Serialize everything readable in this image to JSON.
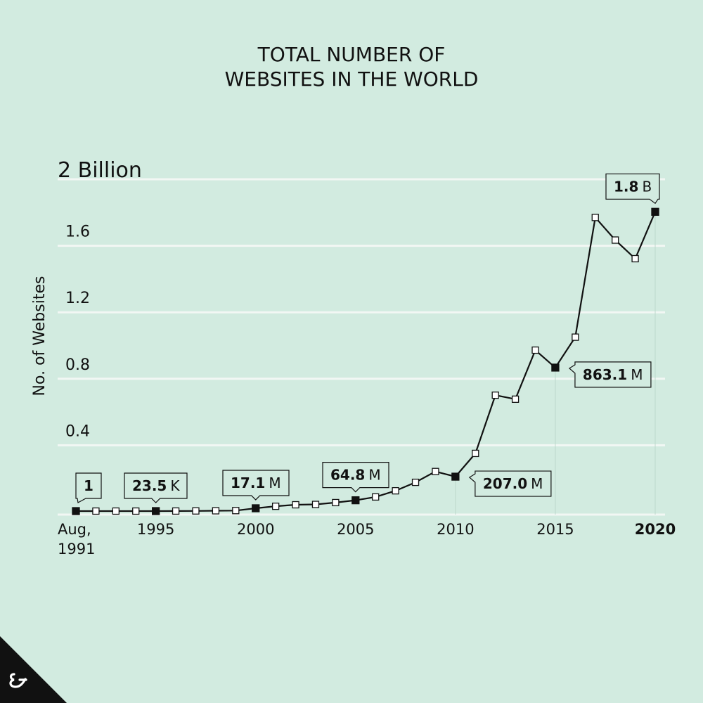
{
  "title_lines": [
    "TOTAL NUMBER OF",
    "WEBSITES IN THE WORLD"
  ],
  "brand": {
    "logo_icon": "brand-logo-icon",
    "corner_color": "#111111"
  },
  "colors": {
    "background": "#d2ebe0",
    "grid": "#f2f7f4",
    "line": "#111111",
    "marker_hollow": "#ffffff"
  },
  "chart_data": {
    "type": "line",
    "title": "TOTAL NUMBER OF WEBSITES IN THE WORLD",
    "ylabel": "No. of Websites",
    "y_top_label": "2 Billion",
    "yticks": [
      {
        "value": 0.4,
        "label": "0.4"
      },
      {
        "value": 0.8,
        "label": "0.8"
      },
      {
        "value": 1.2,
        "label": "1.2"
      },
      {
        "value": 1.6,
        "label": "1.6"
      },
      {
        "value": 2.0,
        "label": "2 Billion"
      }
    ],
    "ylim": [
      0,
      2.0
    ],
    "xlim": [
      1991,
      2020
    ],
    "xticks": [
      {
        "value": 1991,
        "label": [
          "Aug,",
          "1991"
        ],
        "bold": false
      },
      {
        "value": 1995,
        "label": [
          "1995"
        ],
        "bold": false
      },
      {
        "value": 2000,
        "label": [
          "2000"
        ],
        "bold": false
      },
      {
        "value": 2005,
        "label": [
          "2005"
        ],
        "bold": false
      },
      {
        "value": 2010,
        "label": [
          "2010"
        ],
        "bold": false
      },
      {
        "value": 2015,
        "label": [
          "2015"
        ],
        "bold": false
      },
      {
        "value": 2020,
        "label": [
          "2020"
        ],
        "bold": true
      }
    ],
    "grid": true,
    "series": [
      {
        "x": [
          1991,
          1992,
          1993,
          1994,
          1995,
          1996,
          1997,
          1998,
          1999,
          2000,
          2001,
          2002,
          2003,
          2004,
          2005,
          2006,
          2007,
          2008,
          2009,
          2010,
          2011,
          2012,
          2013,
          2014,
          2015,
          2016,
          2017,
          2018,
          2019,
          2020
        ],
        "y": [
          0,
          0,
          0,
          0,
          2e-05,
          0.0003,
          0.001,
          0.002,
          0.003,
          0.017,
          0.029,
          0.038,
          0.04,
          0.051,
          0.065,
          0.085,
          0.122,
          0.173,
          0.238,
          0.207,
          0.347,
          0.697,
          0.673,
          0.968,
          0.863,
          1.046,
          1.766,
          1.63,
          1.518,
          1.8
        ],
        "highlight": [
          1991,
          1995,
          2000,
          2005,
          2010,
          2015,
          2020
        ]
      }
    ],
    "annotations": [
      {
        "x": 1991,
        "value": "1",
        "unit": ""
      },
      {
        "x": 1995,
        "value": "23.5",
        "unit": "K"
      },
      {
        "x": 2000,
        "value": "17.1",
        "unit": "M"
      },
      {
        "x": 2005,
        "value": "64.8",
        "unit": "M"
      },
      {
        "x": 2010,
        "value": "207.0",
        "unit": "M"
      },
      {
        "x": 2015,
        "value": "863.1",
        "unit": "M"
      },
      {
        "x": 2020,
        "value": "1.8",
        "unit": "B"
      }
    ]
  }
}
